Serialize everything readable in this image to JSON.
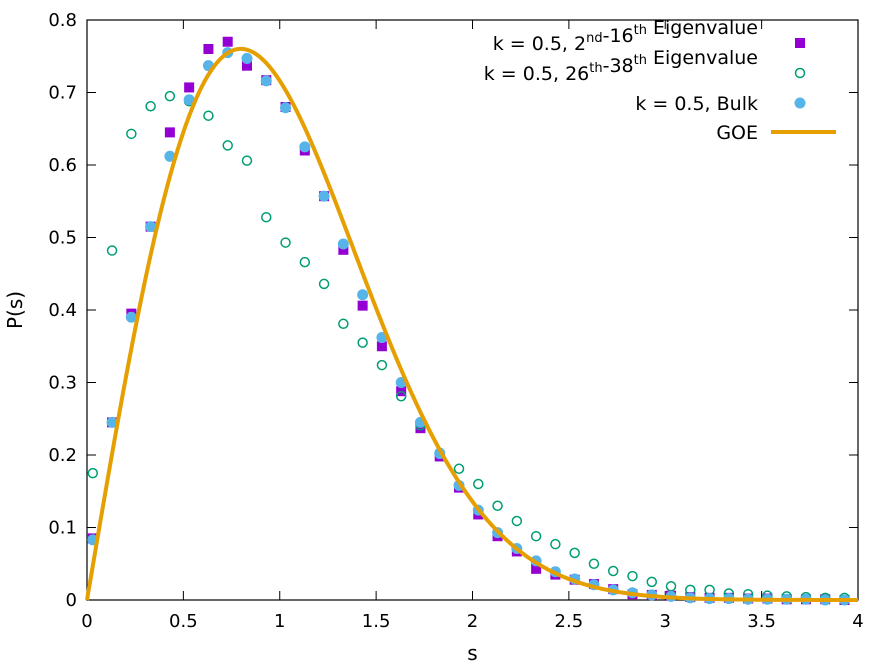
{
  "chart_data": {
    "type": "scatter",
    "xlabel": "s",
    "ylabel": "P(s)",
    "xlim": [
      0,
      4
    ],
    "ylim": [
      0,
      0.8
    ],
    "xticks": [
      "0",
      "0.5",
      "1",
      "1.5",
      "2",
      "2.5",
      "3",
      "3.5",
      "4"
    ],
    "yticks": [
      "0",
      "0.1",
      "0.2",
      "0.3",
      "0.4",
      "0.5",
      "0.6",
      "0.7",
      "0.8"
    ],
    "grid": false,
    "legend_position": "top-right",
    "series": [
      {
        "name": "k = 0.5, 2nd-16th Eigenvalue",
        "label_parts": [
          {
            "text": "k = 0.5, 2"
          },
          {
            "text": "nd",
            "sup": true
          },
          {
            "text": "-16"
          },
          {
            "text": "th",
            "sup": true
          },
          {
            "text": " Eigenvalue"
          }
        ],
        "marker": "filled-square",
        "color": "#9400d3",
        "x": [
          0.03,
          0.13,
          0.23,
          0.33,
          0.43,
          0.53,
          0.63,
          0.73,
          0.83,
          0.93,
          1.03,
          1.13,
          1.23,
          1.33,
          1.43,
          1.53,
          1.63,
          1.73,
          1.83,
          1.93,
          2.03,
          2.13,
          2.23,
          2.33,
          2.43,
          2.53,
          2.63,
          2.73,
          2.83,
          2.93,
          3.03,
          3.13,
          3.23,
          3.33,
          3.43,
          3.53,
          3.63,
          3.73,
          3.83,
          3.93
        ],
        "y": [
          0.085,
          0.245,
          0.395,
          0.515,
          0.645,
          0.707,
          0.76,
          0.77,
          0.737,
          0.717,
          0.68,
          0.62,
          0.557,
          0.483,
          0.406,
          0.35,
          0.288,
          0.237,
          0.198,
          0.155,
          0.118,
          0.088,
          0.067,
          0.043,
          0.035,
          0.028,
          0.022,
          0.015,
          0.008,
          0.007,
          0.006,
          0.004,
          0.003,
          0.003,
          0.002,
          0.002,
          0.001,
          0.001,
          0.001,
          0.0
        ]
      },
      {
        "name": "k = 0.5, 26th-38th Eigenvalue",
        "label_parts": [
          {
            "text": "k = 0.5, 26"
          },
          {
            "text": "th",
            "sup": true
          },
          {
            "text": "-38"
          },
          {
            "text": "th",
            "sup": true
          },
          {
            "text": " Eigenvalue"
          }
        ],
        "marker": "open-circle",
        "color": "#009e73",
        "x": [
          0.03,
          0.13,
          0.23,
          0.33,
          0.43,
          0.53,
          0.63,
          0.73,
          0.83,
          0.93,
          1.03,
          1.13,
          1.23,
          1.33,
          1.43,
          1.53,
          1.63,
          1.73,
          1.83,
          1.93,
          2.03,
          2.13,
          2.23,
          2.33,
          2.43,
          2.53,
          2.63,
          2.73,
          2.83,
          2.93,
          3.03,
          3.13,
          3.23,
          3.33,
          3.43,
          3.53,
          3.63,
          3.73,
          3.83,
          3.93
        ],
        "y": [
          0.175,
          0.482,
          0.643,
          0.681,
          0.695,
          0.688,
          0.668,
          0.627,
          0.606,
          0.528,
          0.493,
          0.466,
          0.436,
          0.381,
          0.355,
          0.324,
          0.281,
          0.241,
          0.203,
          0.181,
          0.16,
          0.13,
          0.109,
          0.088,
          0.077,
          0.065,
          0.05,
          0.04,
          0.033,
          0.025,
          0.019,
          0.014,
          0.014,
          0.009,
          0.008,
          0.006,
          0.005,
          0.004,
          0.003,
          0.003
        ]
      },
      {
        "name": "k = 0.5, Bulk",
        "label_parts": [
          {
            "text": "k = 0.5, Bulk"
          }
        ],
        "marker": "filled-circle",
        "color": "#56b4e9",
        "x": [
          0.03,
          0.13,
          0.23,
          0.33,
          0.43,
          0.53,
          0.63,
          0.73,
          0.83,
          0.93,
          1.03,
          1.13,
          1.23,
          1.33,
          1.43,
          1.53,
          1.63,
          1.73,
          1.83,
          1.93,
          2.03,
          2.13,
          2.23,
          2.33,
          2.43,
          2.53,
          2.63,
          2.73,
          2.83,
          2.93,
          3.03,
          3.13,
          3.23,
          3.33,
          3.43,
          3.53,
          3.63,
          3.73,
          3.83,
          3.93
        ],
        "y": [
          0.083,
          0.245,
          0.39,
          0.515,
          0.612,
          0.69,
          0.737,
          0.755,
          0.747,
          0.716,
          0.679,
          0.625,
          0.557,
          0.491,
          0.421,
          0.362,
          0.3,
          0.245,
          0.202,
          0.158,
          0.124,
          0.093,
          0.071,
          0.054,
          0.039,
          0.029,
          0.021,
          0.014,
          0.01,
          0.007,
          0.005,
          0.003,
          0.002,
          0.002,
          0.001,
          0.001,
          0.001,
          0.001,
          0.0,
          0.0
        ]
      },
      {
        "name": "GOE",
        "label_parts": [
          {
            "text": "GOE"
          }
        ],
        "marker": "line",
        "color": "#e69f00",
        "function": "(pi/2) s exp(-pi s^2 / 4)"
      }
    ]
  }
}
